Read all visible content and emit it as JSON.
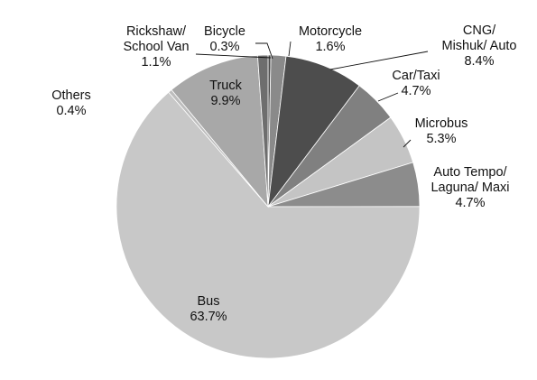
{
  "chart_data": {
    "type": "pie",
    "title": "",
    "legend": "none",
    "slices": [
      {
        "name": "Bicycle",
        "label_lines": [
          "Bicycle",
          "0.3%"
        ],
        "value": 0.3,
        "color": "#4a4a4a"
      },
      {
        "name": "Motorcycle",
        "label_lines": [
          "Motorcycle",
          "1.6%"
        ],
        "value": 1.6,
        "color": "#8a8a8a"
      },
      {
        "name": "CNG/ Mishuk/ Auto",
        "label_lines": [
          "CNG/",
          "Mishuk/ Auto",
          "8.4%"
        ],
        "value": 8.4,
        "color": "#4d4d4d"
      },
      {
        "name": "Car/Taxi",
        "label_lines": [
          "Car/Taxi",
          "4.7%"
        ],
        "value": 4.7,
        "color": "#808080"
      },
      {
        "name": "Microbus",
        "label_lines": [
          "Microbus",
          "5.3%"
        ],
        "value": 5.3,
        "color": "#c4c4c4"
      },
      {
        "name": "Auto Tempo/ Laguna/ Maxi",
        "label_lines": [
          "Auto Tempo/",
          "Laguna/ Maxi",
          "4.7%"
        ],
        "value": 4.7,
        "color": "#8c8c8c"
      },
      {
        "name": "Bus",
        "label_lines": [
          "Bus",
          "63.7%"
        ],
        "value": 63.7,
        "color": "#c8c8c8"
      },
      {
        "name": "Others",
        "label_lines": [
          "Others",
          "0.4%"
        ],
        "value": 0.4,
        "color": "#bdbdbd"
      },
      {
        "name": "Truck",
        "label_lines": [
          "Truck",
          "9.9%"
        ],
        "value": 9.9,
        "color": "#a8a8a8"
      },
      {
        "name": "Rickshaw/ School Van",
        "label_lines": [
          "Rickshaw/",
          "School Van",
          "1.1%"
        ],
        "value": 1.1,
        "color": "#6e6e6e"
      }
    ]
  }
}
